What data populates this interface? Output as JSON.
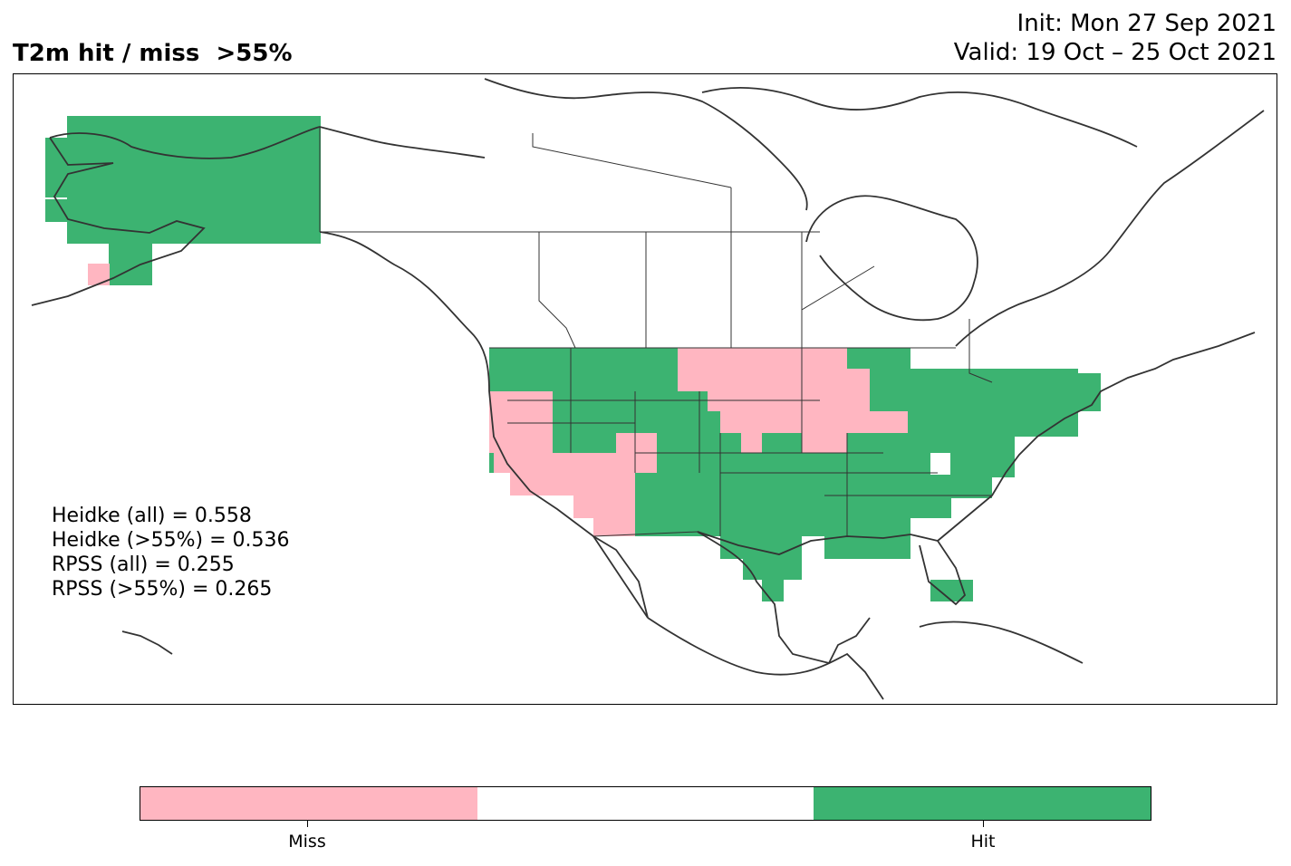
{
  "header": {
    "title": "T2m hit / miss  >55%",
    "init": "Init: Mon 27 Sep 2021",
    "valid": "Valid: 19 Oct – 25 Oct 2021"
  },
  "stats": [
    "Heidke (all) = 0.558",
    "Heidke (>55%) = 0.536",
    "RPSS (all) = 0.255",
    "RPSS (>55%) = 0.265"
  ],
  "legend": {
    "colors": {
      "miss": "#ffb6c1",
      "none": "#ffffff",
      "hit": "#3cb371"
    },
    "miss_label": "Miss",
    "hit_label": "Hit"
  },
  "map": {
    "coastline_color": "#333333",
    "border_color": "#333333"
  }
}
